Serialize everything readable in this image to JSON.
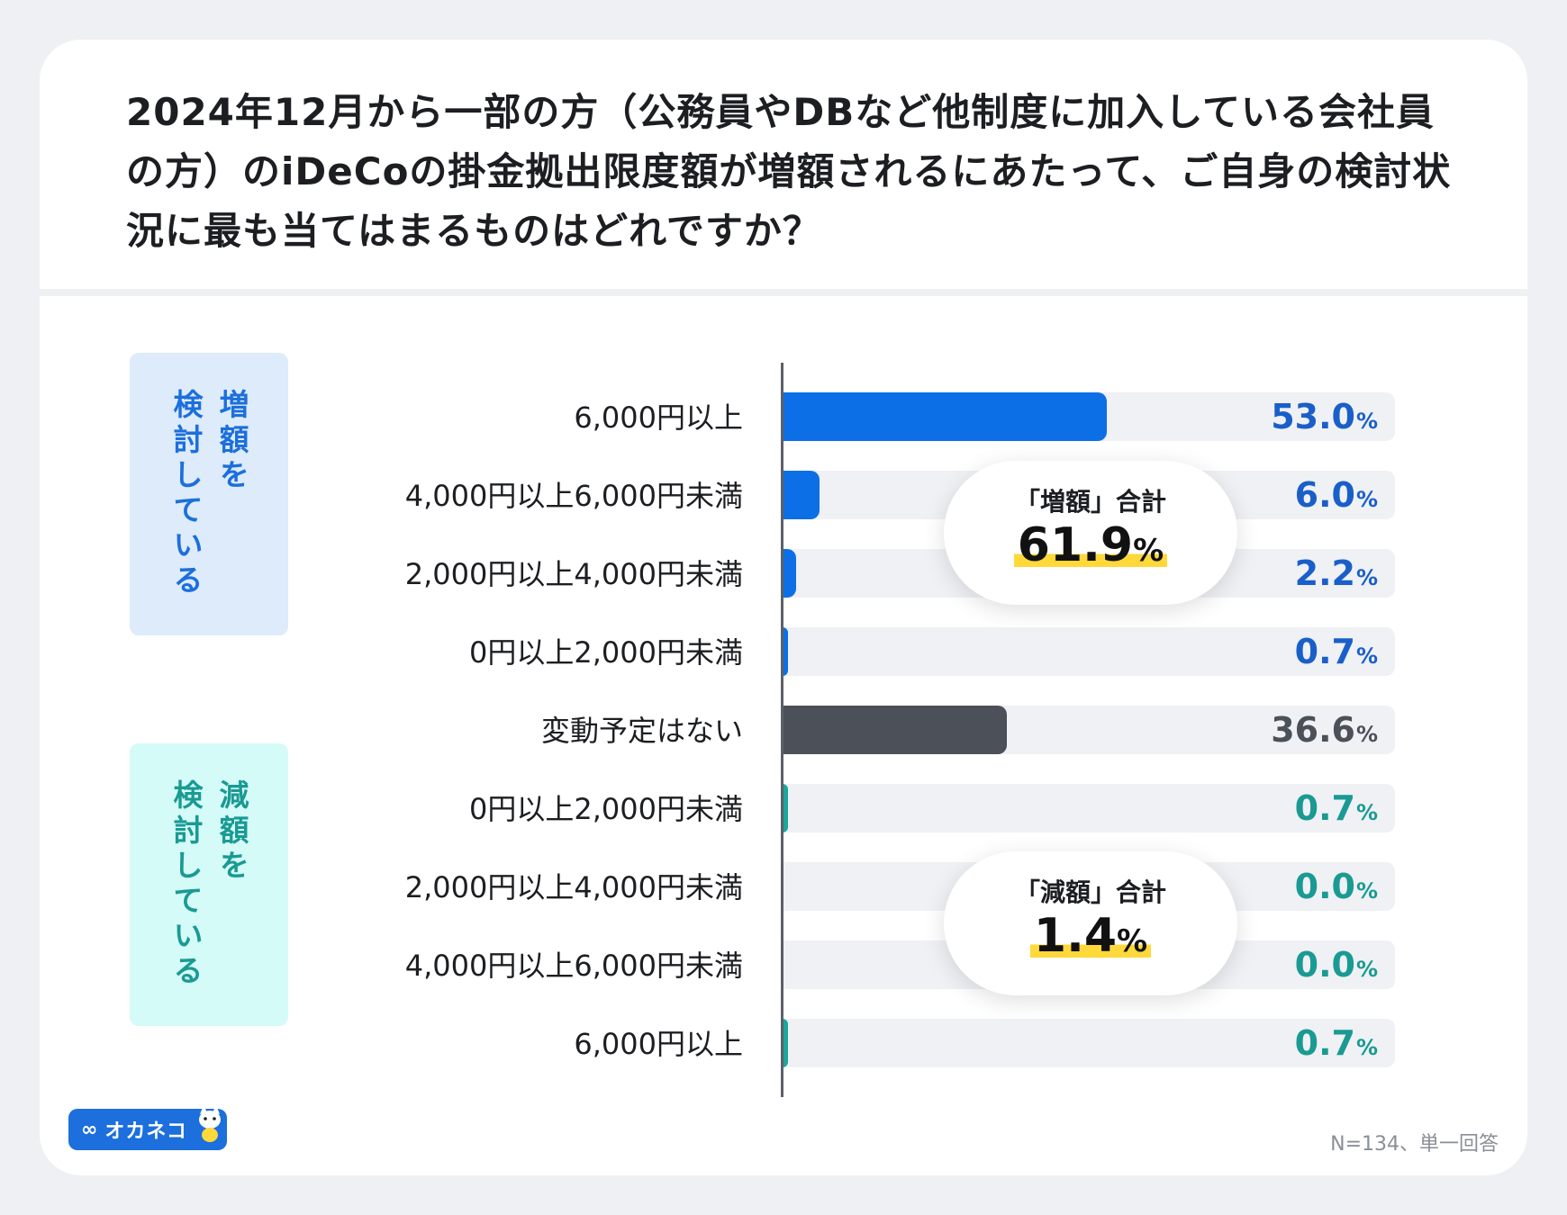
{
  "title": "2024年12月から一部の方（公務員やDBなど他制度に加入している会社員の方）のiDeCoの掛金拠出限度額が増額されるにあたって、ご自身の検討状況に最も当てはまるものはどれですか？",
  "groups": {
    "increase": {
      "col1": "増額を",
      "col2": "検討している"
    },
    "decrease": {
      "col1": "減額を",
      "col2": "検討している"
    }
  },
  "subtotals": {
    "increase": {
      "label": "「増額」合計",
      "value": "61.9",
      "unit": "%"
    },
    "decrease": {
      "label": "「減額」合計",
      "value": "1.4",
      "unit": "%"
    }
  },
  "colors": {
    "increase": "#0d6fe6",
    "neutral": "#4b5059",
    "decrease": "#1ba69e",
    "increase_text": "#1a5fc9",
    "neutral_text": "#4b5059",
    "decrease_text": "#1a9a93"
  },
  "chart_data": {
    "type": "bar",
    "orientation": "horizontal",
    "categories": [
      "6,000円以上",
      "4,000円以上6,000円未満",
      "2,000円以上4,000円未満",
      "0円以上2,000円未満",
      "変動予定はない",
      "0円以上2,000円未満",
      "2,000円以上4,000円未満",
      "4,000円以上6,000円未満",
      "6,000円以上"
    ],
    "values": [
      53.0,
      6.0,
      2.2,
      0.7,
      36.6,
      0.7,
      0.0,
      0.0,
      0.7
    ],
    "value_labels": [
      "53.0",
      "6.0",
      "2.2",
      "0.7",
      "36.6",
      "0.7",
      "0.0",
      "0.0",
      "0.7"
    ],
    "unit": "%",
    "groups": [
      "increase",
      "increase",
      "increase",
      "increase",
      "neutral",
      "decrease",
      "decrease",
      "decrease",
      "decrease"
    ],
    "xlim": [
      0,
      100
    ]
  },
  "footer": {
    "logo_text": "オカネコ",
    "note": "N=134、単一回答"
  }
}
